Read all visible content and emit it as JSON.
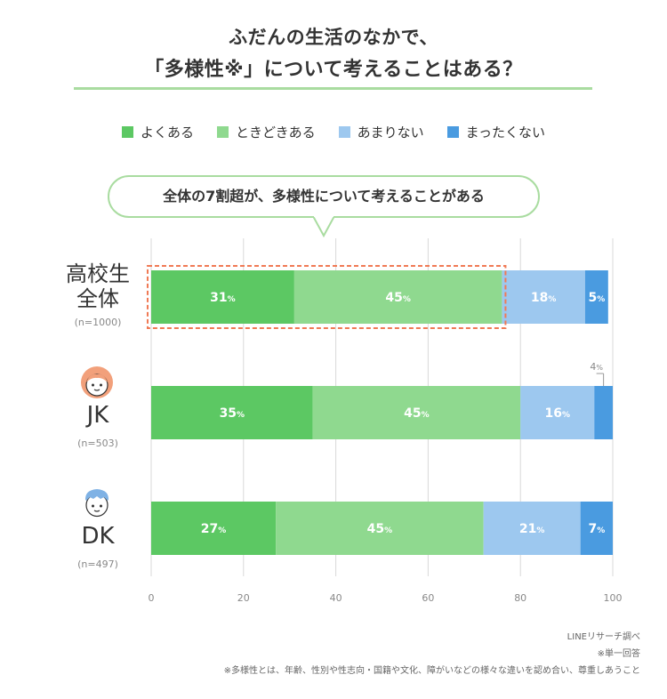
{
  "title_line1": "ふだんの生活のなかで、",
  "title_line2": "「多様性※」について考えることはある？",
  "callout": "全体の7割超が、多様性について考えることがある",
  "colors": {
    "often": "#5cc863",
    "sometimes": "#8fd98f",
    "rarely": "#9dc8ef",
    "never": "#4a9be0",
    "highlight": "#f07a55",
    "accent_line": "#a9dca0"
  },
  "groups": [
    {
      "label_line1": "高校生",
      "label_line2": "全体",
      "n": "(n=1000)",
      "icon": ""
    },
    {
      "label_line1": "JK",
      "label_line2": "",
      "n": "(n=503)",
      "icon": "girl-face-icon"
    },
    {
      "label_line1": "DK",
      "label_line2": "",
      "n": "(n=497)",
      "icon": "boy-face-icon"
    }
  ],
  "footnotes": {
    "source": "LINEリサーチ調べ",
    "single": "※単一回答",
    "definition": "※多様性とは、年齢、性別や性志向・国籍や文化、障がいなどの様々な違いを認め合い、尊重しあうこと"
  },
  "chart_data": {
    "type": "bar",
    "orientation": "horizontal",
    "stacked": true,
    "categories": [
      "高校生全体",
      "JK",
      "DK"
    ],
    "series": [
      {
        "name": "よくある",
        "values": [
          31,
          35,
          27
        ]
      },
      {
        "name": "ときどきある",
        "values": [
          45,
          45,
          45
        ]
      },
      {
        "name": "あまりない",
        "values": [
          18,
          16,
          21
        ]
      },
      {
        "name": "まったくない",
        "values": [
          5,
          4,
          7
        ]
      }
    ],
    "unit": "%",
    "xlim": [
      0,
      100
    ],
    "xticks": [
      "0",
      "20",
      "40",
      "60",
      "80",
      "100"
    ],
    "grid": true,
    "legend": "top"
  }
}
